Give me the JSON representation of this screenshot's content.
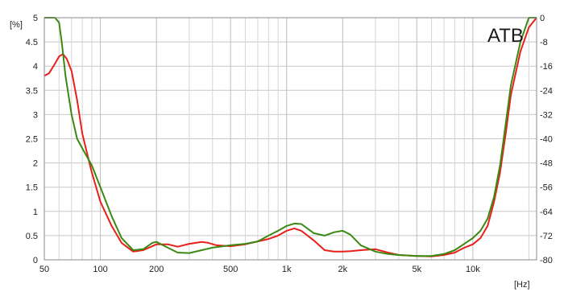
{
  "chart_data": {
    "type": "line",
    "title": "",
    "brand": "ATB",
    "xlabel": "[Hz]",
    "ylabel": "[%]",
    "xscale": "log",
    "xlim": [
      50,
      22000
    ],
    "ylim": [
      0,
      5
    ],
    "y2lim": [
      -80,
      0
    ],
    "grid": true,
    "x_ticks": [
      {
        "v": 50,
        "label": "50"
      },
      {
        "v": 100,
        "label": "100"
      },
      {
        "v": 200,
        "label": "200"
      },
      {
        "v": 500,
        "label": "500"
      },
      {
        "v": 1000,
        "label": "1k"
      },
      {
        "v": 2000,
        "label": "2k"
      },
      {
        "v": 5000,
        "label": "5k"
      },
      {
        "v": 10000,
        "label": "10k"
      }
    ],
    "x_minor_grid": [
      60,
      70,
      80,
      90,
      300,
      400,
      600,
      700,
      800,
      900,
      3000,
      4000,
      6000,
      7000,
      8000,
      9000,
      20000
    ],
    "y_ticks": [
      {
        "v": 5,
        "label": "5"
      },
      {
        "v": 4.5,
        "label": "4.5"
      },
      {
        "v": 4,
        "label": "4"
      },
      {
        "v": 3.5,
        "label": "3.5"
      },
      {
        "v": 3,
        "label": "3"
      },
      {
        "v": 2.5,
        "label": "2.5"
      },
      {
        "v": 2,
        "label": "2"
      },
      {
        "v": 1.5,
        "label": "1.5"
      },
      {
        "v": 1,
        "label": "1"
      },
      {
        "v": 0.5,
        "label": "0.5"
      },
      {
        "v": 0,
        "label": "0"
      }
    ],
    "y2_ticks": [
      {
        "v": 0,
        "label": "0"
      },
      {
        "v": -8,
        "label": "-8"
      },
      {
        "v": -16,
        "label": "-16"
      },
      {
        "v": -24,
        "label": "-24"
      },
      {
        "v": -32,
        "label": "-32"
      },
      {
        "v": -40,
        "label": "-40"
      },
      {
        "v": -48,
        "label": "-48"
      },
      {
        "v": -56,
        "label": "-56"
      },
      {
        "v": -64,
        "label": "-64"
      },
      {
        "v": -72,
        "label": "-72"
      },
      {
        "v": -80,
        "label": "-80"
      }
    ],
    "series": [
      {
        "color": "#e8201c",
        "x": [
          50,
          53,
          56,
          60,
          63,
          66,
          70,
          75,
          80,
          90,
          100,
          115,
          130,
          150,
          170,
          190,
          200,
          230,
          260,
          300,
          350,
          380,
          420,
          500,
          600,
          700,
          800,
          900,
          1000,
          1100,
          1200,
          1400,
          1600,
          1800,
          2000,
          2200,
          2500,
          3000,
          3500,
          4000,
          5000,
          6000,
          7000,
          8000,
          9000,
          10000,
          11000,
          12000,
          13000,
          14000,
          15000,
          16000,
          18000,
          20000,
          22000
        ],
        "y": [
          3.8,
          3.85,
          4.0,
          4.2,
          4.25,
          4.15,
          3.9,
          3.3,
          2.6,
          1.8,
          1.2,
          0.7,
          0.35,
          0.17,
          0.2,
          0.28,
          0.32,
          0.32,
          0.27,
          0.33,
          0.37,
          0.35,
          0.3,
          0.28,
          0.32,
          0.38,
          0.43,
          0.5,
          0.6,
          0.65,
          0.6,
          0.4,
          0.2,
          0.17,
          0.17,
          0.18,
          0.2,
          0.22,
          0.15,
          0.1,
          0.08,
          0.07,
          0.1,
          0.15,
          0.25,
          0.32,
          0.45,
          0.7,
          1.2,
          1.8,
          2.6,
          3.4,
          4.3,
          4.8,
          5.0
        ]
      },
      {
        "color": "#3a8a12",
        "x": [
          50,
          53,
          57,
          60,
          62,
          65,
          70,
          75,
          80,
          90,
          100,
          115,
          130,
          150,
          170,
          190,
          200,
          230,
          260,
          300,
          350,
          400,
          500,
          600,
          700,
          800,
          900,
          1000,
          1100,
          1200,
          1400,
          1600,
          1800,
          2000,
          2200,
          2500,
          3000,
          3500,
          4000,
          5000,
          6000,
          7000,
          8000,
          9000,
          10000,
          11000,
          12000,
          13000,
          14000,
          15000,
          16000,
          18000,
          20000,
          22000
        ],
        "y": [
          5.0,
          5.0,
          5.0,
          4.9,
          4.5,
          3.8,
          3.0,
          2.5,
          2.3,
          1.95,
          1.5,
          0.9,
          0.45,
          0.2,
          0.22,
          0.35,
          0.37,
          0.25,
          0.15,
          0.14,
          0.2,
          0.25,
          0.3,
          0.33,
          0.38,
          0.5,
          0.6,
          0.7,
          0.75,
          0.74,
          0.55,
          0.5,
          0.57,
          0.6,
          0.52,
          0.3,
          0.17,
          0.12,
          0.1,
          0.08,
          0.08,
          0.12,
          0.2,
          0.33,
          0.45,
          0.6,
          0.85,
          1.3,
          1.95,
          2.8,
          3.6,
          4.5,
          5.0,
          5.0
        ]
      }
    ]
  }
}
